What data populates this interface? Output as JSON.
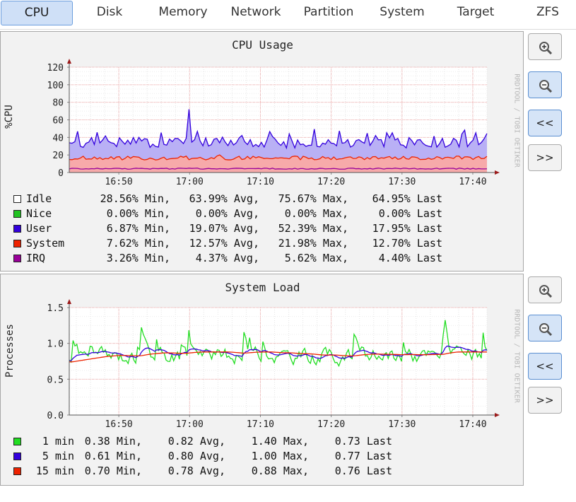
{
  "tabs": [
    "CPU",
    "Disk",
    "Memory",
    "Network",
    "Partition",
    "System",
    "Target",
    "ZFS"
  ],
  "active_tab": "CPU",
  "buttons": {
    "zoom_in": "zoom-in",
    "zoom_out": "zoom-out",
    "back": "<<",
    "forward": ">>"
  },
  "watermark": "RRDTOOL / TOBI OETIKER",
  "chart_data": [
    {
      "type": "area",
      "title": "CPU Usage",
      "ylabel": "%CPU",
      "ylim": [
        0,
        120
      ],
      "yticks": [
        0,
        20,
        40,
        60,
        80,
        100,
        120
      ],
      "xticks": [
        "16:50",
        "17:00",
        "17:10",
        "17:20",
        "17:30",
        "17:40"
      ],
      "x_range": [
        "16:43",
        "17:42"
      ],
      "grid": true,
      "series": [
        {
          "name": "Idle",
          "color": "#ffffff",
          "stats": [
            "28.56% Min,",
            "63.99% Avg,",
            "75.67% Max,",
            "64.95% Last"
          ]
        },
        {
          "name": "Nice",
          "color": "#22c322",
          "stats": [
            "0.00% Min,",
            "0.00% Avg,",
            "0.00% Max,",
            "0.00% Last"
          ]
        },
        {
          "name": "User",
          "color": "#3300dd",
          "fill": "#b9b0f5",
          "stats": [
            "6.87% Min,",
            "19.07% Avg,",
            "52.39% Max,",
            "17.95% Last"
          ],
          "base": 34,
          "amp": 6,
          "spike": [
            17.0,
            72
          ]
        },
        {
          "name": "System",
          "color": "#ee2200",
          "fill": "#f7aaaa",
          "stats": [
            "7.62% Min,",
            "12.57% Avg,",
            "21.98% Max,",
            "12.70% Last"
          ],
          "base": 16.5,
          "amp": 2.2
        },
        {
          "name": "IRQ",
          "color": "#990099",
          "stats": [
            "3.26% Min,",
            "4.37% Avg,",
            "5.62% Max,",
            "4.40% Last"
          ],
          "base": 4.4,
          "amp": 0.6
        }
      ]
    },
    {
      "type": "line",
      "title": "System Load",
      "ylabel": "Processes",
      "ylim": [
        0,
        1.5
      ],
      "yticks": [
        "0.0",
        "0.5",
        "1.0",
        "1.5"
      ],
      "xticks": [
        "16:50",
        "17:00",
        "17:10",
        "17:20",
        "17:30",
        "17:40"
      ],
      "x_range": [
        "16:43",
        "17:42"
      ],
      "grid": true,
      "series": [
        {
          "name": "1 min",
          "color": "#22dd22",
          "stats": [
            "0.38 Min,",
            "0.82 Avg,",
            "1.40 Max,",
            "0.73 Last"
          ]
        },
        {
          "name": "5 min",
          "color": "#3300dd",
          "stats": [
            "0.61 Min,",
            "0.80 Avg,",
            "1.00 Max,",
            "0.77 Last"
          ]
        },
        {
          "name": "15 min",
          "color": "#ee2200",
          "stats": [
            "0.70 Min,",
            "0.78 Avg,",
            "0.88 Max,",
            "0.76 Last"
          ]
        }
      ]
    }
  ]
}
